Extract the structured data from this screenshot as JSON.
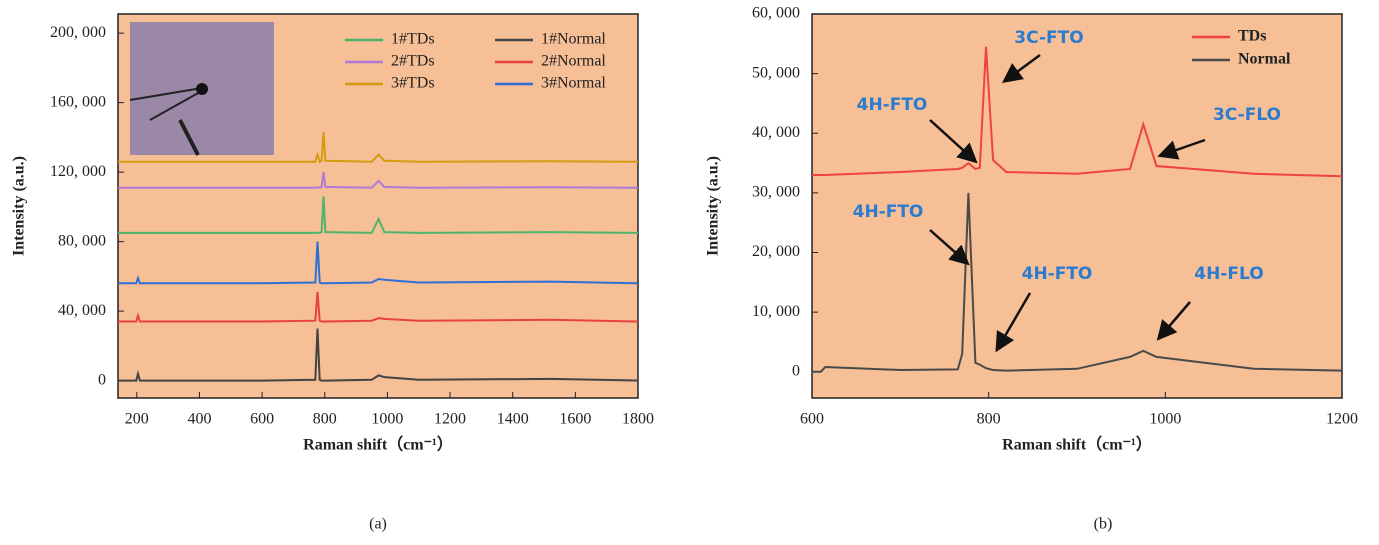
{
  "chart_data": [
    {
      "type": "line",
      "caption": "(a)",
      "xlabel": "Raman shift（cm⁻¹）",
      "ylabel": "Intensity (a.u.)",
      "xlim": [
        140,
        1800
      ],
      "xticks": [
        200,
        400,
        600,
        800,
        1000,
        1200,
        1400,
        1600,
        1800
      ],
      "ylim": [
        -10000,
        211000
      ],
      "yticks": [
        0,
        {
          "value": 40000,
          "label": "40, 000"
        },
        {
          "value": 80000,
          "label": "80, 000"
        },
        {
          "value": 120000,
          "label": "120, 000"
        },
        {
          "value": 160000,
          "label": "160, 000"
        },
        {
          "value": 200000,
          "label": "200, 000"
        }
      ],
      "background": "#f6bf96",
      "x": [
        140,
        198,
        204,
        210,
        600,
        770,
        777,
        784,
        790,
        796,
        802,
        950,
        972,
        990,
        1100,
        1520,
        1800
      ],
      "series": [
        {
          "name": "1#TDs",
          "color": "#4cb56a",
          "values": [
            85000,
            85000,
            85000,
            85000,
            85000,
            85000,
            85200,
            85000,
            85500,
            106000,
            85500,
            85000,
            93000,
            85500,
            85000,
            85500,
            85000
          ]
        },
        {
          "name": "2#TDs",
          "color": "#b07ad8",
          "values": [
            111000,
            111000,
            111000,
            111000,
            111000,
            111000,
            111300,
            111000,
            111500,
            120000,
            111500,
            111000,
            115000,
            111500,
            111000,
            111300,
            111000
          ]
        },
        {
          "name": "3#TDs",
          "color": "#d49b12",
          "values": [
            126000,
            126000,
            126000,
            126000,
            126000,
            126000,
            130000,
            126000,
            126500,
            143000,
            126500,
            126000,
            130000,
            126500,
            126000,
            126300,
            126000
          ]
        },
        {
          "name": "1#Normal",
          "color": "#444444",
          "values": [
            0,
            0,
            4000,
            0,
            0,
            500,
            30000,
            500,
            0,
            0,
            0,
            500,
            3000,
            2000,
            500,
            1000,
            0
          ]
        },
        {
          "name": "2#Normal",
          "color": "#e8433a",
          "values": [
            34000,
            34000,
            37500,
            34000,
            34000,
            34500,
            51000,
            34500,
            34000,
            34000,
            34000,
            34500,
            36000,
            35500,
            34500,
            35000,
            34000
          ]
        },
        {
          "name": "3#Normal",
          "color": "#2f6fd6",
          "values": [
            56000,
            56000,
            59000,
            56000,
            56000,
            56500,
            80000,
            56500,
            56000,
            56000,
            56000,
            56500,
            58500,
            58000,
            56500,
            57000,
            56000
          ]
        }
      ]
    },
    {
      "type": "line",
      "caption": "(b)",
      "xlabel": "Raman shift（cm⁻¹）",
      "ylabel": "Intensity (a.u.)",
      "xlim": [
        600,
        1200
      ],
      "xticks": [
        600,
        800,
        1000,
        1200
      ],
      "ylim": [
        -4400,
        60000
      ],
      "yticks": [
        0,
        {
          "value": 10000,
          "label": "10, 000"
        },
        {
          "value": 20000,
          "label": "20, 000"
        },
        {
          "value": 30000,
          "label": "30, 000"
        },
        {
          "value": 40000,
          "label": "40, 000"
        },
        {
          "value": 50000,
          "label": "50, 000"
        },
        {
          "value": 60000,
          "label": "60, 000"
        }
      ],
      "background": "#f6bf96",
      "annotations": [
        "3C-FTO",
        "4H-FTO",
        "3C-FLO",
        "4H-FTO",
        "4H-FTO",
        "4H-FLO"
      ],
      "x": [
        600,
        610,
        615,
        700,
        765,
        770,
        777,
        785,
        790,
        797,
        805,
        820,
        900,
        960,
        975,
        990,
        1100,
        1200
      ],
      "series": [
        {
          "name": "TDs",
          "color": "#f0433c",
          "values": [
            33000,
            33000,
            33000,
            33500,
            34000,
            34200,
            35000,
            34000,
            34200,
            54500,
            35500,
            33500,
            33200,
            34000,
            41500,
            34500,
            33200,
            32800
          ]
        },
        {
          "name": "Normal",
          "color": "#4a4a4a",
          "values": [
            0,
            0,
            800,
            300,
            400,
            3000,
            30000,
            1500,
            1200,
            600,
            300,
            200,
            500,
            2500,
            3500,
            2500,
            500,
            200
          ]
        }
      ]
    }
  ]
}
